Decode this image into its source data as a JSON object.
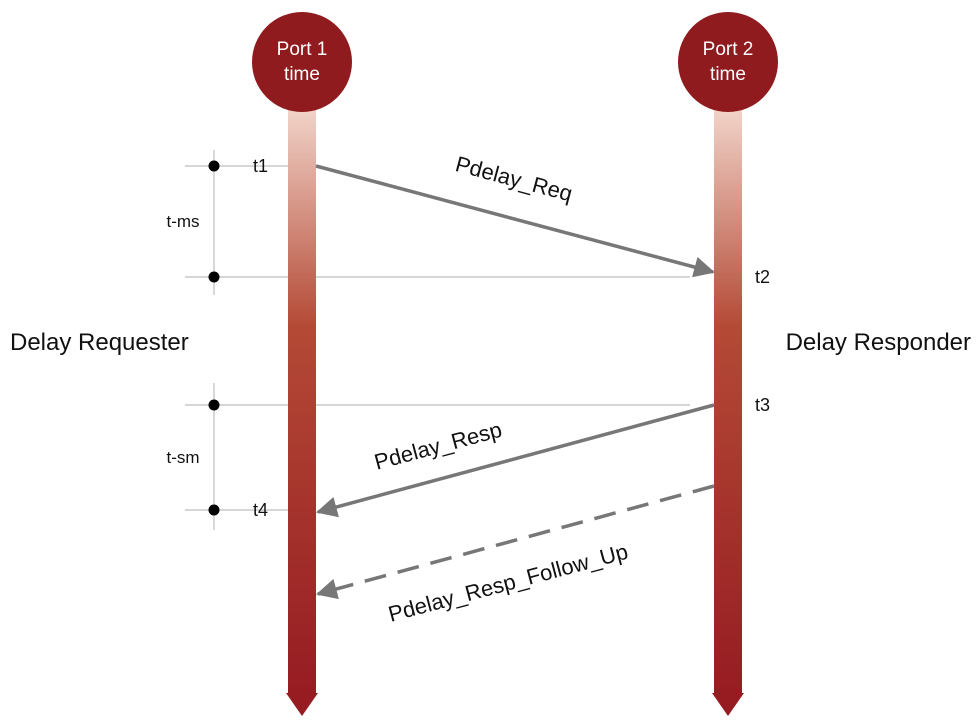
{
  "ports": [
    {
      "line1": "Port 1",
      "line2": "time"
    },
    {
      "line1": "Port 2",
      "line2": "time"
    }
  ],
  "roles": {
    "requester": "Delay Requester",
    "responder": "Delay Responder"
  },
  "timestamps": {
    "t1": "t1",
    "t2": "t2",
    "t3": "t3",
    "t4": "t4"
  },
  "intervals": {
    "ms": "t-ms",
    "sm": "t-sm"
  },
  "messages": {
    "req": "Pdelay_Req",
    "resp": "Pdelay_Resp",
    "follow_up": "Pdelay_Resp_Follow_Up"
  },
  "colors": {
    "port_circle": "#8f1b1f",
    "timeline_top": "#f4d9cf",
    "timeline_mid": "#b44a36",
    "timeline_bottom": "#961c22",
    "arrow": "#777777",
    "guide_line": "#bdbdbd",
    "marker": "#000000"
  }
}
